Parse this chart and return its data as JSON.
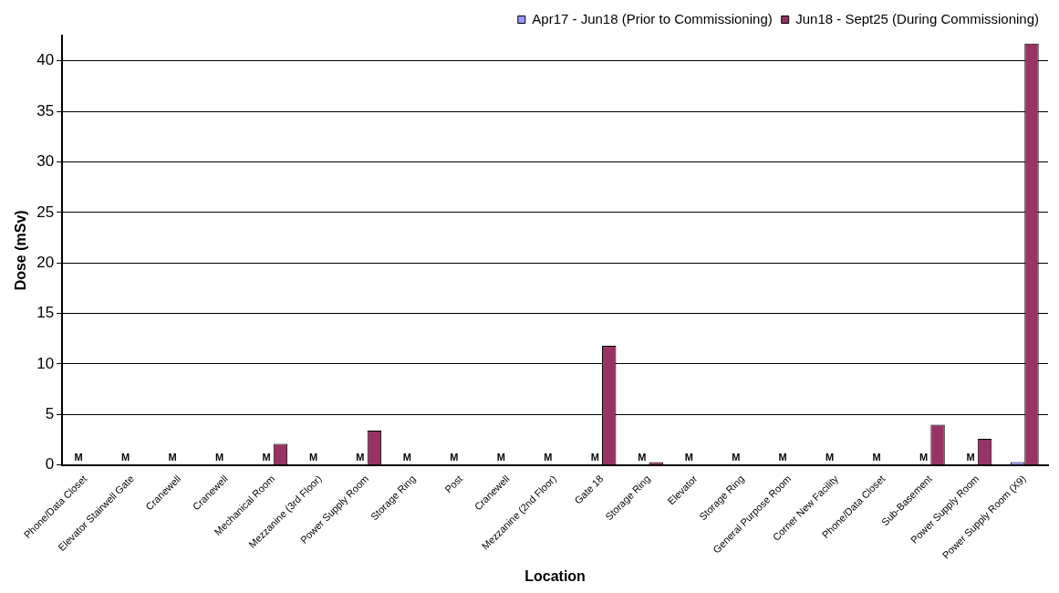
{
  "chart_data": {
    "type": "bar",
    "xlabel": "Location",
    "ylabel": "Dose (mSv)",
    "categories": [
      "Phone/Data Closet",
      "Elevator Stairwell Gate",
      "Cranewell",
      "Cranewell",
      "Mechanical Room",
      "Mezzanine (3rd Floor)",
      "Power Supply Room",
      "Storage Ring",
      "Post",
      "Cranewell",
      "Mezzanine (2nd Floor)",
      "Gate 18",
      "Storage Ring",
      "Elevator",
      "Storage Ring",
      "General Purpose Room",
      "Corner New Facility",
      "Phone/Data Closet",
      "Sub-Basement",
      "Power Supply Room",
      "Power Supply Room (X9)"
    ],
    "series": [
      {
        "name": "Apr17 - Jun18 (Prior to Commissioning)",
        "color": "#9999ff",
        "values": [
          0,
          0,
          0,
          0,
          0,
          0,
          0,
          0,
          0,
          0,
          0,
          0,
          0,
          0,
          0,
          0,
          0,
          0,
          0,
          0,
          0.3
        ],
        "value_labels": [
          "M",
          "M",
          "M",
          "M",
          "M",
          "M",
          "M",
          "M",
          "M",
          "M",
          "M",
          "M",
          "M",
          "M",
          "M",
          "M",
          "M",
          "M",
          "M",
          "M",
          null
        ]
      },
      {
        "name": "Jun18 - Sept25 (During Commissioning)",
        "color": "#993366",
        "values": [
          0,
          0,
          0,
          0,
          2.1,
          0,
          3.4,
          0,
          0,
          0,
          0,
          11.8,
          0.3,
          0,
          0,
          0,
          0,
          0,
          4.0,
          2.6,
          41.7
        ]
      }
    ],
    "ylim": [
      0,
      42.5
    ],
    "yticks": [
      0,
      5,
      10,
      15,
      20,
      25,
      30,
      35,
      40
    ],
    "grid": "y",
    "legend": "top right"
  }
}
